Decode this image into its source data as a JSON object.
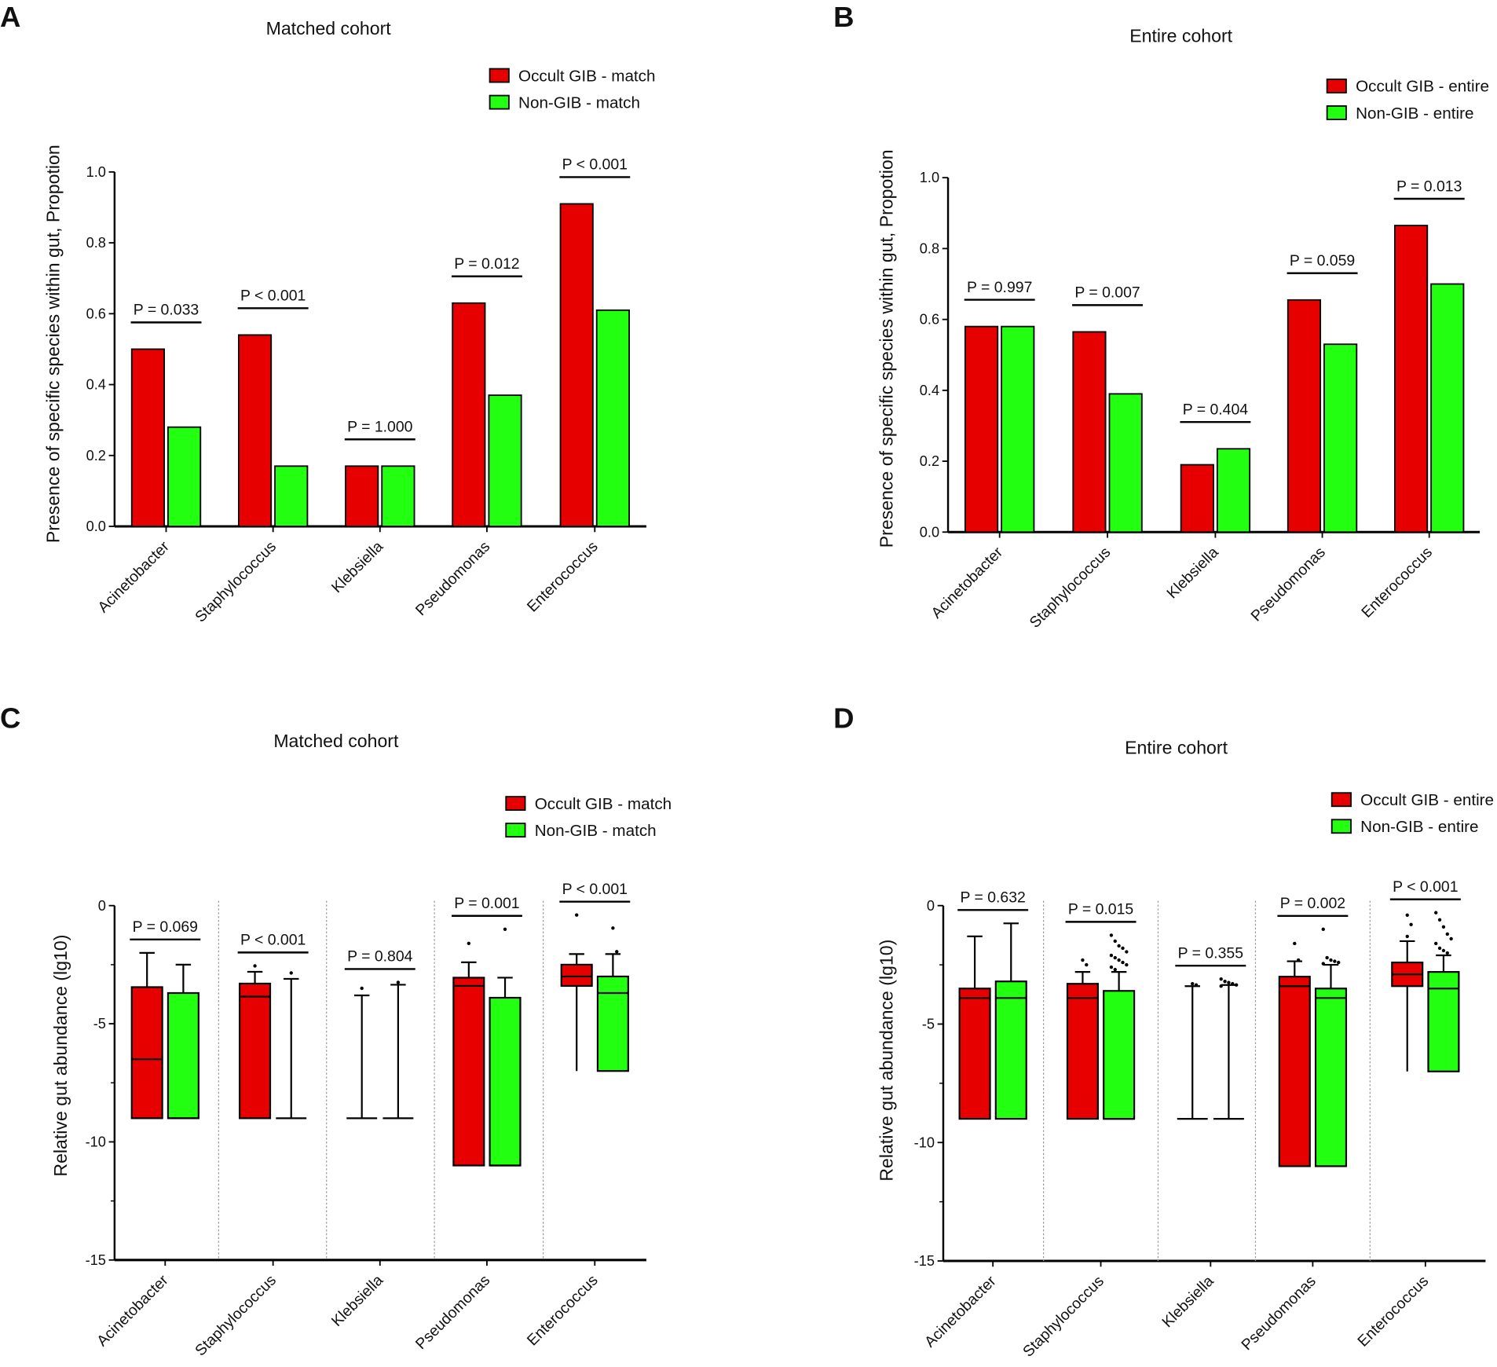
{
  "colors": {
    "occult": "#e60000",
    "non": "#22ff10"
  },
  "chart_data": [
    {
      "panel": "A",
      "type": "bar",
      "title": "Matched cohort",
      "ylabel": "Presence of specific species within gut, Propotion",
      "ylim": [
        0,
        1.0
      ],
      "yticks": [
        "0.0",
        "0.2",
        "0.4",
        "0.6",
        "0.8",
        "1.0"
      ],
      "categories": [
        "Acinetobacter",
        "Staphylococcus",
        "Klebsiella",
        "Pseudomonas",
        "Enterococcus"
      ],
      "series": [
        {
          "name": "Occult GIB - match",
          "values": [
            0.5,
            0.54,
            0.17,
            0.63,
            0.91
          ]
        },
        {
          "name": "Non-GIB - match",
          "values": [
            0.28,
            0.17,
            0.17,
            0.37,
            0.61
          ]
        }
      ],
      "pvalues": [
        "P = 0.033",
        "P < 0.001",
        "P = 1.000",
        "P = 0.012",
        "P < 0.001"
      ]
    },
    {
      "panel": "B",
      "type": "bar",
      "title": "Entire cohort",
      "ylabel": "Presence of specific species within gut, Propotion",
      "ylim": [
        0,
        1.0
      ],
      "yticks": [
        "0.0",
        "0.2",
        "0.4",
        "0.6",
        "0.8",
        "1.0"
      ],
      "categories": [
        "Acinetobacter",
        "Staphylococcus",
        "Klebsiella",
        "Pseudomonas",
        "Enterococcus"
      ],
      "series": [
        {
          "name": "Occult GIB - entire",
          "values": [
            0.58,
            0.565,
            0.19,
            0.655,
            0.865
          ]
        },
        {
          "name": "Non-GIB - entire",
          "values": [
            0.58,
            0.39,
            0.235,
            0.53,
            0.7
          ]
        }
      ],
      "pvalues": [
        "P = 0.997",
        "P = 0.007",
        "P = 0.404",
        "P = 0.059",
        "P = 0.013"
      ]
    },
    {
      "panel": "C",
      "type": "box",
      "title": "Matched cohort",
      "ylabel": "Relative gut abundance (lg10)",
      "ylim": [
        -15,
        0
      ],
      "yticks": [
        "0",
        "-5",
        "-10",
        "-15"
      ],
      "categories": [
        "Acinetobacter",
        "Staphylococcus",
        "Klebsiella",
        "Pseudomonas",
        "Enterococcus"
      ],
      "series": [
        {
          "name": "Occult GIB - match",
          "boxes": [
            {
              "min": -9,
              "q1": -9,
              "median": -6.5,
              "q3": -3.45,
              "max": -2.0,
              "outliers": []
            },
            {
              "min": -9,
              "q1": -9,
              "median": -3.85,
              "q3": -3.3,
              "max": -2.8,
              "outliers": [
                -2.55
              ]
            },
            {
              "min": -9,
              "q1": null,
              "median": null,
              "q3": null,
              "max": -3.8,
              "outliers": [
                -3.5
              ]
            },
            {
              "min": -11,
              "q1": -11,
              "median": -3.4,
              "q3": -3.05,
              "max": -2.4,
              "outliers": [
                -1.6
              ]
            },
            {
              "min": -7,
              "q1": -3.4,
              "median": -3.0,
              "q3": -2.5,
              "max": -2.05,
              "outliers": [
                -0.4
              ]
            }
          ]
        },
        {
          "name": "Non-GIB - match",
          "boxes": [
            {
              "min": -9,
              "q1": -9,
              "median": -9,
              "q3": -3.7,
              "max": -2.5,
              "outliers": []
            },
            {
              "min": -9,
              "q1": null,
              "median": null,
              "q3": null,
              "max": -3.1,
              "outliers": [
                -2.85
              ]
            },
            {
              "min": -9,
              "q1": null,
              "median": null,
              "q3": null,
              "max": -3.35,
              "outliers": [
                -3.25
              ]
            },
            {
              "min": -11,
              "q1": -11,
              "median": -11,
              "q3": -3.9,
              "max": -3.05,
              "outliers": [
                -1.0
              ]
            },
            {
              "min": -7,
              "q1": -7,
              "median": -3.7,
              "q3": -3.0,
              "max": -2.05,
              "outliers": [
                -0.95,
                -1.95
              ]
            }
          ]
        }
      ],
      "pvalues": [
        "P = 0.069",
        "P < 0.001",
        "P = 0.804",
        "P = 0.001",
        "P < 0.001"
      ]
    },
    {
      "panel": "D",
      "type": "box",
      "title": "Entire cohort",
      "ylabel": "Relative gut abundance (lg10)",
      "ylim": [
        -15,
        0
      ],
      "yticks": [
        "0",
        "-5",
        "-10",
        "-15"
      ],
      "categories": [
        "Acinetobacter",
        "Staphylococcus",
        "Klebsiella",
        "Pseudomonas",
        "Enterococcus"
      ],
      "series": [
        {
          "name": "Occult GIB - entire",
          "boxes": [
            {
              "min": -9,
              "q1": -9,
              "median": -3.9,
              "q3": -3.5,
              "max": -1.3,
              "outliers": []
            },
            {
              "min": -9,
              "q1": -9,
              "median": -3.9,
              "q3": -3.3,
              "max": -2.8,
              "outliers": [
                -2.3,
                -2.5
              ]
            },
            {
              "min": -9,
              "q1": null,
              "median": null,
              "q3": null,
              "max": -3.4,
              "outliers": [
                -3.3,
                -3.35
              ]
            },
            {
              "min": -11,
              "q1": -11,
              "median": -3.4,
              "q3": -3.0,
              "max": -2.35,
              "outliers": [
                -1.6,
                -2.3
              ]
            },
            {
              "min": -7,
              "q1": -3.4,
              "median": -2.9,
              "q3": -2.4,
              "max": -1.5,
              "outliers": [
                -0.4,
                -0.8,
                -1.3
              ]
            }
          ]
        },
        {
          "name": "Non-GIB - entire",
          "boxes": [
            {
              "min": -9,
              "q1": -9,
              "median": -3.9,
              "q3": -3.2,
              "max": -0.75,
              "outliers": []
            },
            {
              "min": -9,
              "q1": -9,
              "median": -9,
              "q3": -3.6,
              "max": -2.8,
              "outliers": [
                -1.25,
                -1.5,
                -1.7,
                -1.8,
                -1.95,
                -2.1,
                -2.2,
                -2.3,
                -2.4,
                -2.5,
                -2.6,
                -2.7
              ]
            },
            {
              "min": -9,
              "q1": null,
              "median": null,
              "q3": null,
              "max": -3.35,
              "outliers": [
                -3.1,
                -3.2,
                -3.25,
                -3.3,
                -3.35,
                -3.4
              ]
            },
            {
              "min": -11,
              "q1": -11,
              "median": -3.9,
              "q3": -3.5,
              "max": -2.5,
              "outliers": [
                -1.0,
                -2.2,
                -2.3,
                -2.35,
                -2.4,
                -2.45
              ]
            },
            {
              "min": -7,
              "q1": -7,
              "median": -3.5,
              "q3": -2.8,
              "max": -2.1,
              "outliers": [
                -0.3,
                -0.6,
                -0.9,
                -1.2,
                -1.4,
                -1.6,
                -1.8,
                -1.9,
                -2.0
              ]
            }
          ]
        }
      ],
      "pvalues": [
        "P = 0.632",
        "P = 0.015",
        "P = 0.355",
        "P = 0.002",
        "P < 0.001"
      ]
    }
  ]
}
